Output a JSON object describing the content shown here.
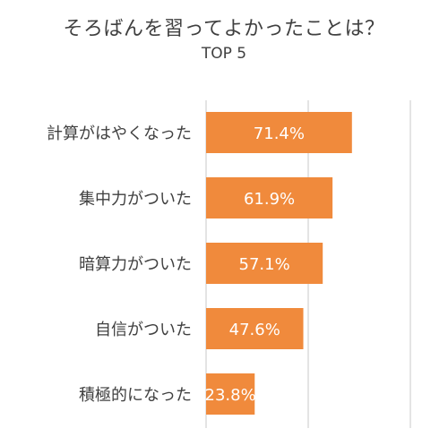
{
  "chart_data": {
    "type": "bar",
    "orientation": "horizontal",
    "title": "そろばんを習ってよかったことは？",
    "subtitle": "TOP 5",
    "categories": [
      "計算がはやくなった",
      "集中力がついた",
      "暗算力がついた",
      "自信がついた",
      "積極的になった"
    ],
    "values": [
      71.4,
      61.9,
      57.1,
      47.6,
      23.8
    ],
    "data_labels": [
      "71.4%",
      "61.9%",
      "57.1%",
      "47.6%",
      "23.8%"
    ],
    "xlim": [
      0,
      100
    ],
    "grid": true,
    "legend": "none",
    "bar_color": "#F08A3C",
    "label_color": "#ffffff",
    "grid_color": "#c9c9c9"
  }
}
